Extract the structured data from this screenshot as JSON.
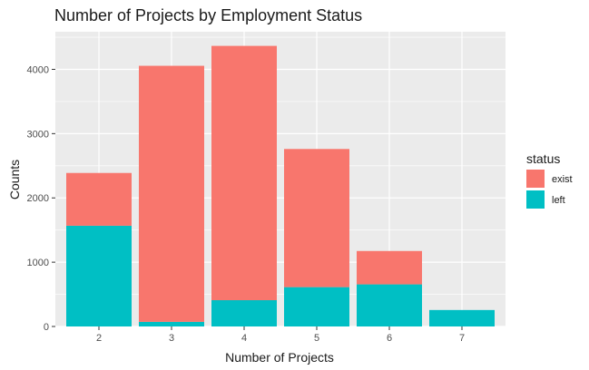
{
  "chart_data": {
    "type": "bar",
    "stacked": true,
    "title": "Number of Projects by Employment Status",
    "xlabel": "Number of Projects",
    "ylabel": "Counts",
    "categories": [
      "2",
      "3",
      "4",
      "5",
      "6",
      "7"
    ],
    "series": [
      {
        "name": "exist",
        "values": [
          821,
          3983,
          3956,
          2149,
          519,
          0
        ],
        "color": "#F8766D"
      },
      {
        "name": "left",
        "values": [
          1567,
          72,
          409,
          612,
          655,
          256
        ],
        "color": "#00BFC4"
      }
    ],
    "yticks": [
      0,
      1000,
      2000,
      3000,
      4000
    ],
    "ylim": [
      0,
      4585
    ],
    "legend": {
      "title": "status",
      "position": "right"
    },
    "grid": true,
    "panel_background": "#EBEBEB",
    "grid_color": "#FFFFFF"
  }
}
